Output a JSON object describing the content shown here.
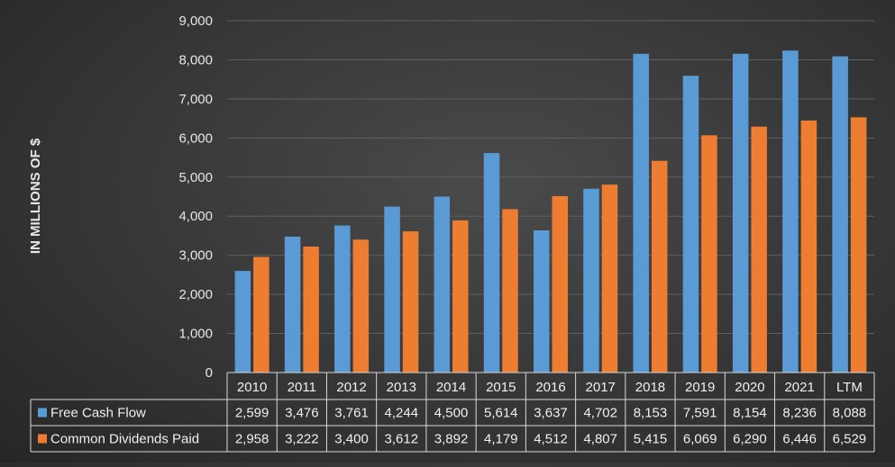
{
  "chart_data": {
    "type": "bar",
    "title": "",
    "xlabel": "",
    "ylabel": "IN MILLIONS OF $",
    "ylim": [
      0,
      9000
    ],
    "yticks": [
      0,
      1000,
      2000,
      3000,
      4000,
      5000,
      6000,
      7000,
      8000,
      9000
    ],
    "ytick_labels": [
      "0",
      "1,000",
      "2,000",
      "3,000",
      "4,000",
      "5,000",
      "6,000",
      "7,000",
      "8,000",
      "9,000"
    ],
    "grid": true,
    "legend": "data-table",
    "categories": [
      "2010",
      "2011",
      "2012",
      "2013",
      "2014",
      "2015",
      "2016",
      "2017",
      "2018",
      "2019",
      "2020",
      "2021",
      "LTM"
    ],
    "series": [
      {
        "name": "Free Cash Flow",
        "color": "#5b9bd5",
        "values": [
          2599,
          3476,
          3761,
          4244,
          4500,
          5614,
          3637,
          4702,
          8153,
          7591,
          8154,
          8236,
          8088
        ],
        "labels": [
          "2,599",
          "3,476",
          "3,761",
          "4,244",
          "4,500",
          "5,614",
          "3,637",
          "4,702",
          "8,153",
          "7,591",
          "8,154",
          "8,236",
          "8,088"
        ]
      },
      {
        "name": "Common Dividends Paid",
        "color": "#ed7d31",
        "values": [
          2958,
          3222,
          3400,
          3612,
          3892,
          4179,
          4512,
          4807,
          5415,
          6069,
          6290,
          6446,
          6529
        ],
        "labels": [
          "2,958",
          "3,222",
          "3,400",
          "3,612",
          "3,892",
          "4,179",
          "4,512",
          "4,807",
          "5,415",
          "6,069",
          "6,290",
          "6,446",
          "6,529"
        ]
      }
    ]
  }
}
